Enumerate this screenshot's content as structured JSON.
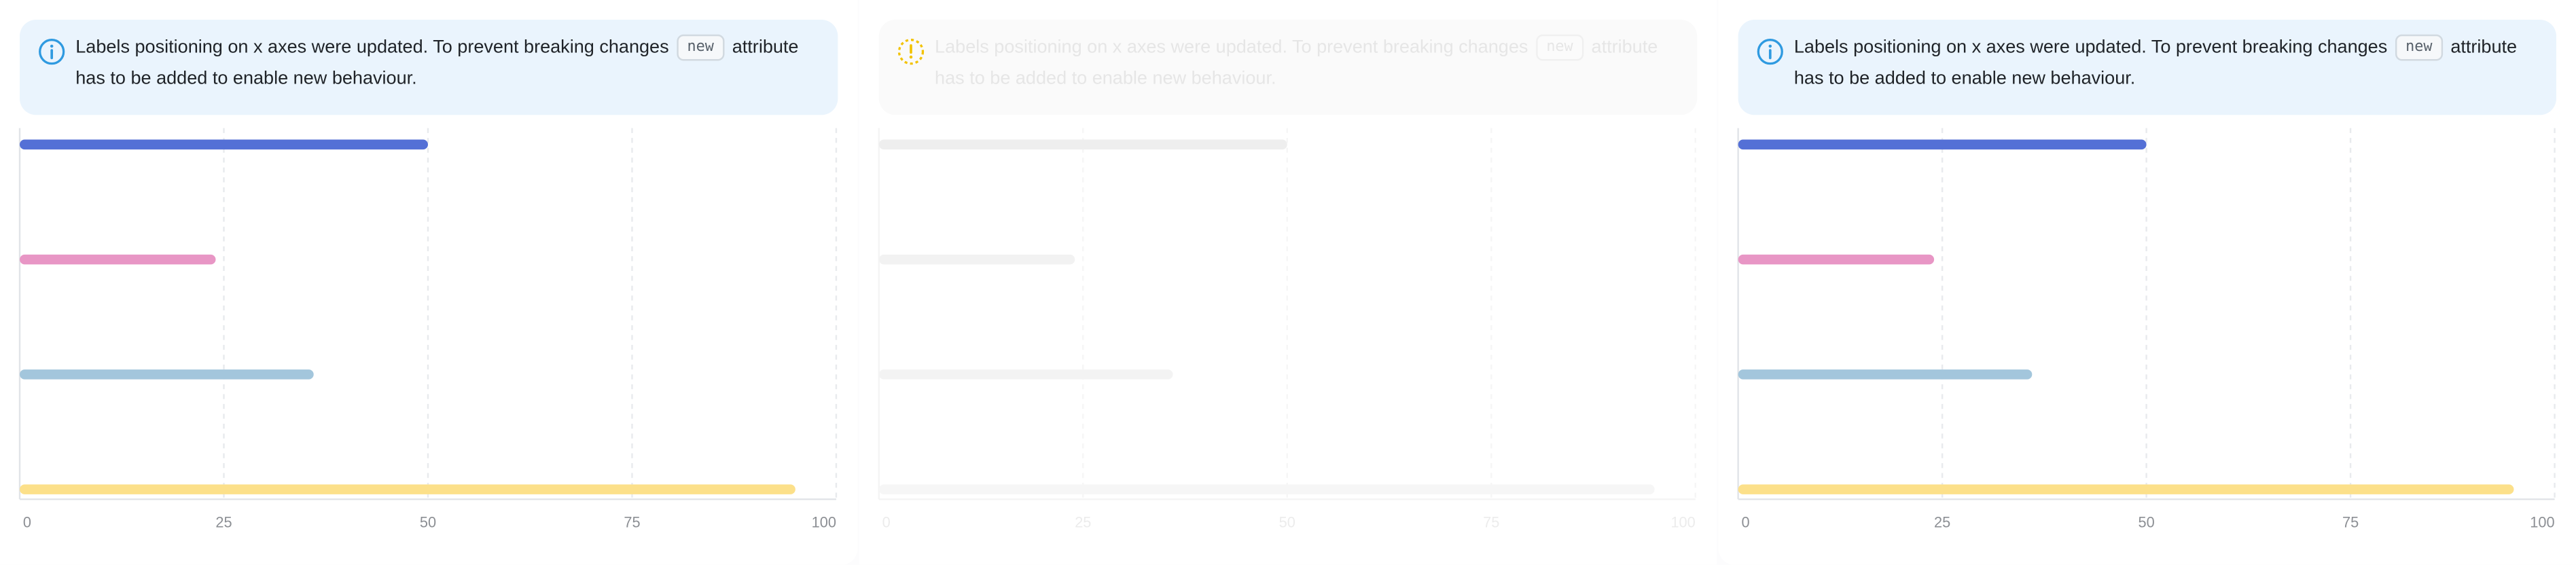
{
  "panels": [
    {
      "id": "left",
      "state": "loaded",
      "alert": {
        "icon": "info-icon",
        "accent": "#2f9ae0",
        "text_before": "Labels positioning on x axes were updated. To prevent breaking changes",
        "code": "new",
        "text_after": "attribute has to be added to enable new behaviour."
      },
      "chart_data": {
        "type": "bar",
        "orientation": "horizontal",
        "categories": [
          "",
          "",
          "",
          ""
        ],
        "values": [
          50,
          24,
          36,
          95
        ],
        "colors": [
          "#5470d6",
          "#e896c5",
          "#a3c6dc",
          "#fce08a"
        ],
        "xlim": [
          0,
          100
        ],
        "xticks": [
          "0",
          "25",
          "50",
          "75",
          "100"
        ],
        "grid": true
      }
    },
    {
      "id": "middle",
      "state": "loading",
      "alert": {
        "icon": "loading-spinner-icon",
        "accent": "#f2c200",
        "text_before": "Labels positioning on x axes were updated. To prevent breaking changes",
        "code": "new",
        "text_after": "attribute has to be added to enable new behaviour."
      },
      "chart_data": {
        "type": "bar",
        "orientation": "horizontal",
        "categories": [
          "",
          "",
          "",
          ""
        ],
        "values": [
          50,
          24,
          36,
          95
        ],
        "colors": [
          "#eeeeee",
          "#f2f2f2",
          "#f3f3f3",
          "#f6f6f6"
        ],
        "xlim": [
          0,
          100
        ],
        "xticks": [
          "0",
          "25",
          "50",
          "75",
          "100"
        ],
        "grid": true
      }
    },
    {
      "id": "right",
      "state": "loaded",
      "alert": {
        "icon": "info-icon",
        "accent": "#2f9ae0",
        "text_before": "Labels positioning on x axes were updated. To prevent breaking changes",
        "code": "new",
        "text_after": "attribute has to be added to enable new behaviour."
      },
      "chart_data": {
        "type": "bar",
        "orientation": "horizontal",
        "categories": [
          "",
          "",
          "",
          ""
        ],
        "values": [
          50,
          24,
          36,
          95
        ],
        "colors": [
          "#5470d6",
          "#e896c5",
          "#a3c6dc",
          "#fce08a"
        ],
        "xlim": [
          0,
          100
        ],
        "xticks": [
          "0",
          "25",
          "50",
          "75",
          "100"
        ],
        "grid": true
      }
    }
  ]
}
